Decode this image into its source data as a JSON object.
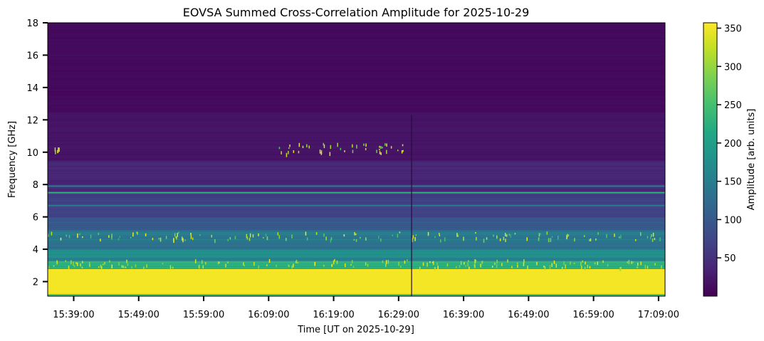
{
  "chart_data": {
    "type": "heatmap",
    "title": "EOVSA Summed Cross-Correlation Amplitude for 2025-10-29",
    "xlabel": "Time [UT on 2025-10-29]",
    "ylabel": "Frequency [GHz]",
    "x_range": [
      "15:35:00",
      "17:10:00"
    ],
    "ylim": [
      1.1,
      18.0
    ],
    "x_ticks": [
      "15:39:00",
      "15:49:00",
      "15:59:00",
      "16:09:00",
      "16:19:00",
      "16:29:00",
      "16:39:00",
      "16:49:00",
      "16:59:00",
      "17:09:00"
    ],
    "y_ticks": [
      2,
      4,
      6,
      8,
      10,
      12,
      14,
      16,
      18
    ],
    "colorbar": {
      "label": "Amplitude [arb. units]",
      "ticks": [
        50,
        100,
        150,
        200,
        250,
        300,
        350
      ],
      "range": [
        0,
        357
      ],
      "colormap": "viridis"
    },
    "features": {
      "gap_time": "16:31:00",
      "persistent_line_ghz": [
        7.9,
        7.5,
        6.7
      ],
      "bright_band_ghz": [
        1.1,
        2.8
      ],
      "burst_band_ghz": [
        9.9,
        10.6
      ]
    }
  }
}
